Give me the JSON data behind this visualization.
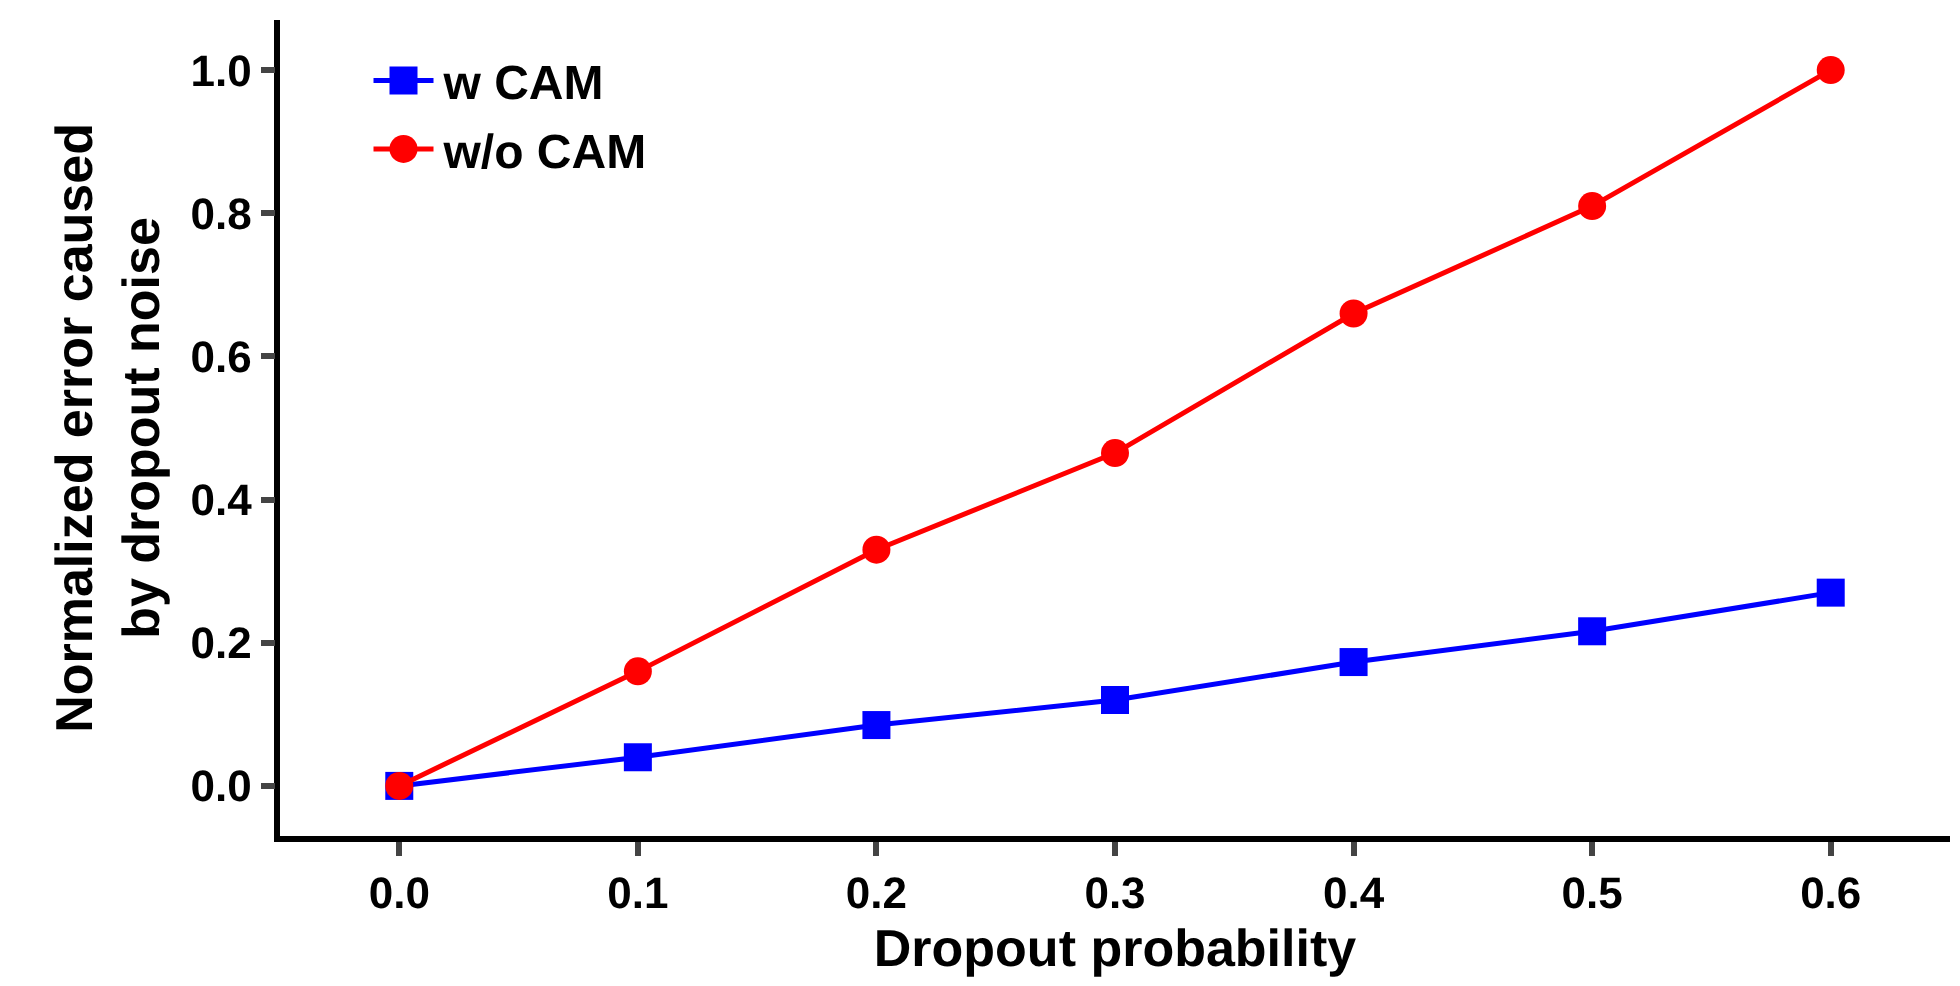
{
  "chart_data": {
    "type": "line",
    "xlabel": "Dropout probability",
    "ylabel": "Normalized error caused\nby dropout noise",
    "x": [
      0.0,
      0.1,
      0.2,
      0.3,
      0.4,
      0.5,
      0.6
    ],
    "series": [
      {
        "name": "w CAM",
        "color": "#0000ff",
        "marker": "square",
        "values": [
          0.0,
          0.04,
          0.085,
          0.12,
          0.173,
          0.216,
          0.27
        ]
      },
      {
        "name": "w/o CAM",
        "color": "#ff0000",
        "marker": "circle",
        "values": [
          0.0,
          0.16,
          0.33,
          0.465,
          0.66,
          0.81,
          1.0
        ]
      }
    ],
    "xlim": [
      -0.05,
      0.65
    ],
    "ylim": [
      -0.07,
      1.07
    ],
    "xticks": [
      {
        "value": 0.0,
        "label": "0.0"
      },
      0.1,
      0.2,
      0.3,
      0.4,
      0.5,
      0.6
    ],
    "yticks": [
      {
        "value": 0.0,
        "label": "0.0"
      },
      0.2,
      0.4,
      0.6,
      0.8,
      {
        "value": 1.0,
        "label": "1.0"
      }
    ],
    "legend": "top left",
    "line_style": "solid"
  }
}
